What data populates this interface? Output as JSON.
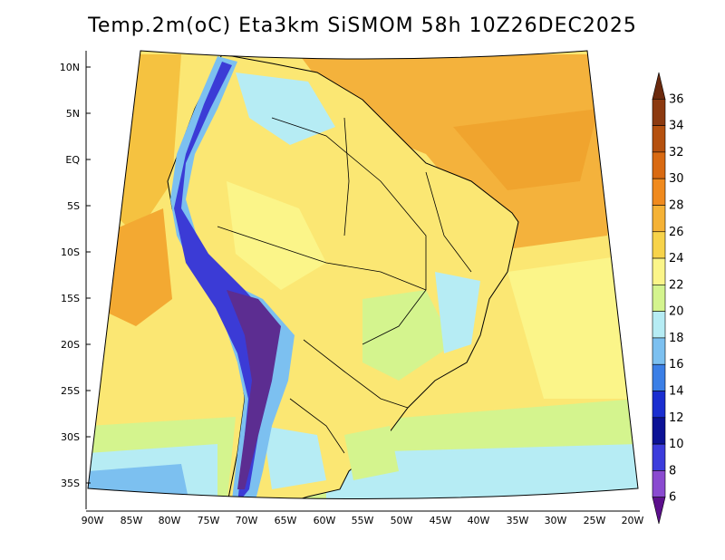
{
  "title": "Temp.2m(oC) Eta3km SiSMOM 58h 10Z26DEC2025",
  "latitude_labels": [
    "10N",
    "5N",
    "EQ",
    "5S",
    "10S",
    "15S",
    "20S",
    "25S",
    "30S",
    "35S"
  ],
  "longitude_labels": [
    "90W",
    "85W",
    "80W",
    "75W",
    "70W",
    "65W",
    "60W",
    "55W",
    "50W",
    "45W",
    "40W",
    "35W",
    "30W",
    "25W",
    "20W"
  ],
  "colorbar": {
    "labels": [
      "36",
      "34",
      "32",
      "30",
      "28",
      "26",
      "24",
      "22",
      "20",
      "18",
      "16",
      "14",
      "12",
      "10",
      "8",
      "6"
    ],
    "colors": [
      "#6b2a0e",
      "#8c3a10",
      "#b5510f",
      "#d96a12",
      "#f08a1e",
      "#f5b236",
      "#f7d34a",
      "#fbf589",
      "#d4f48e",
      "#b6ecf4",
      "#7cc0f0",
      "#3b7fe6",
      "#1a2ed0",
      "#0c1296",
      "#3c3cdc",
      "#8a4ad0",
      "#5c0f8c"
    ]
  },
  "map": {
    "ocean_color": "#f7d34a",
    "land_color": "#fbe773",
    "andes_color": "#5c2d91",
    "coast_color": "#000000"
  }
}
